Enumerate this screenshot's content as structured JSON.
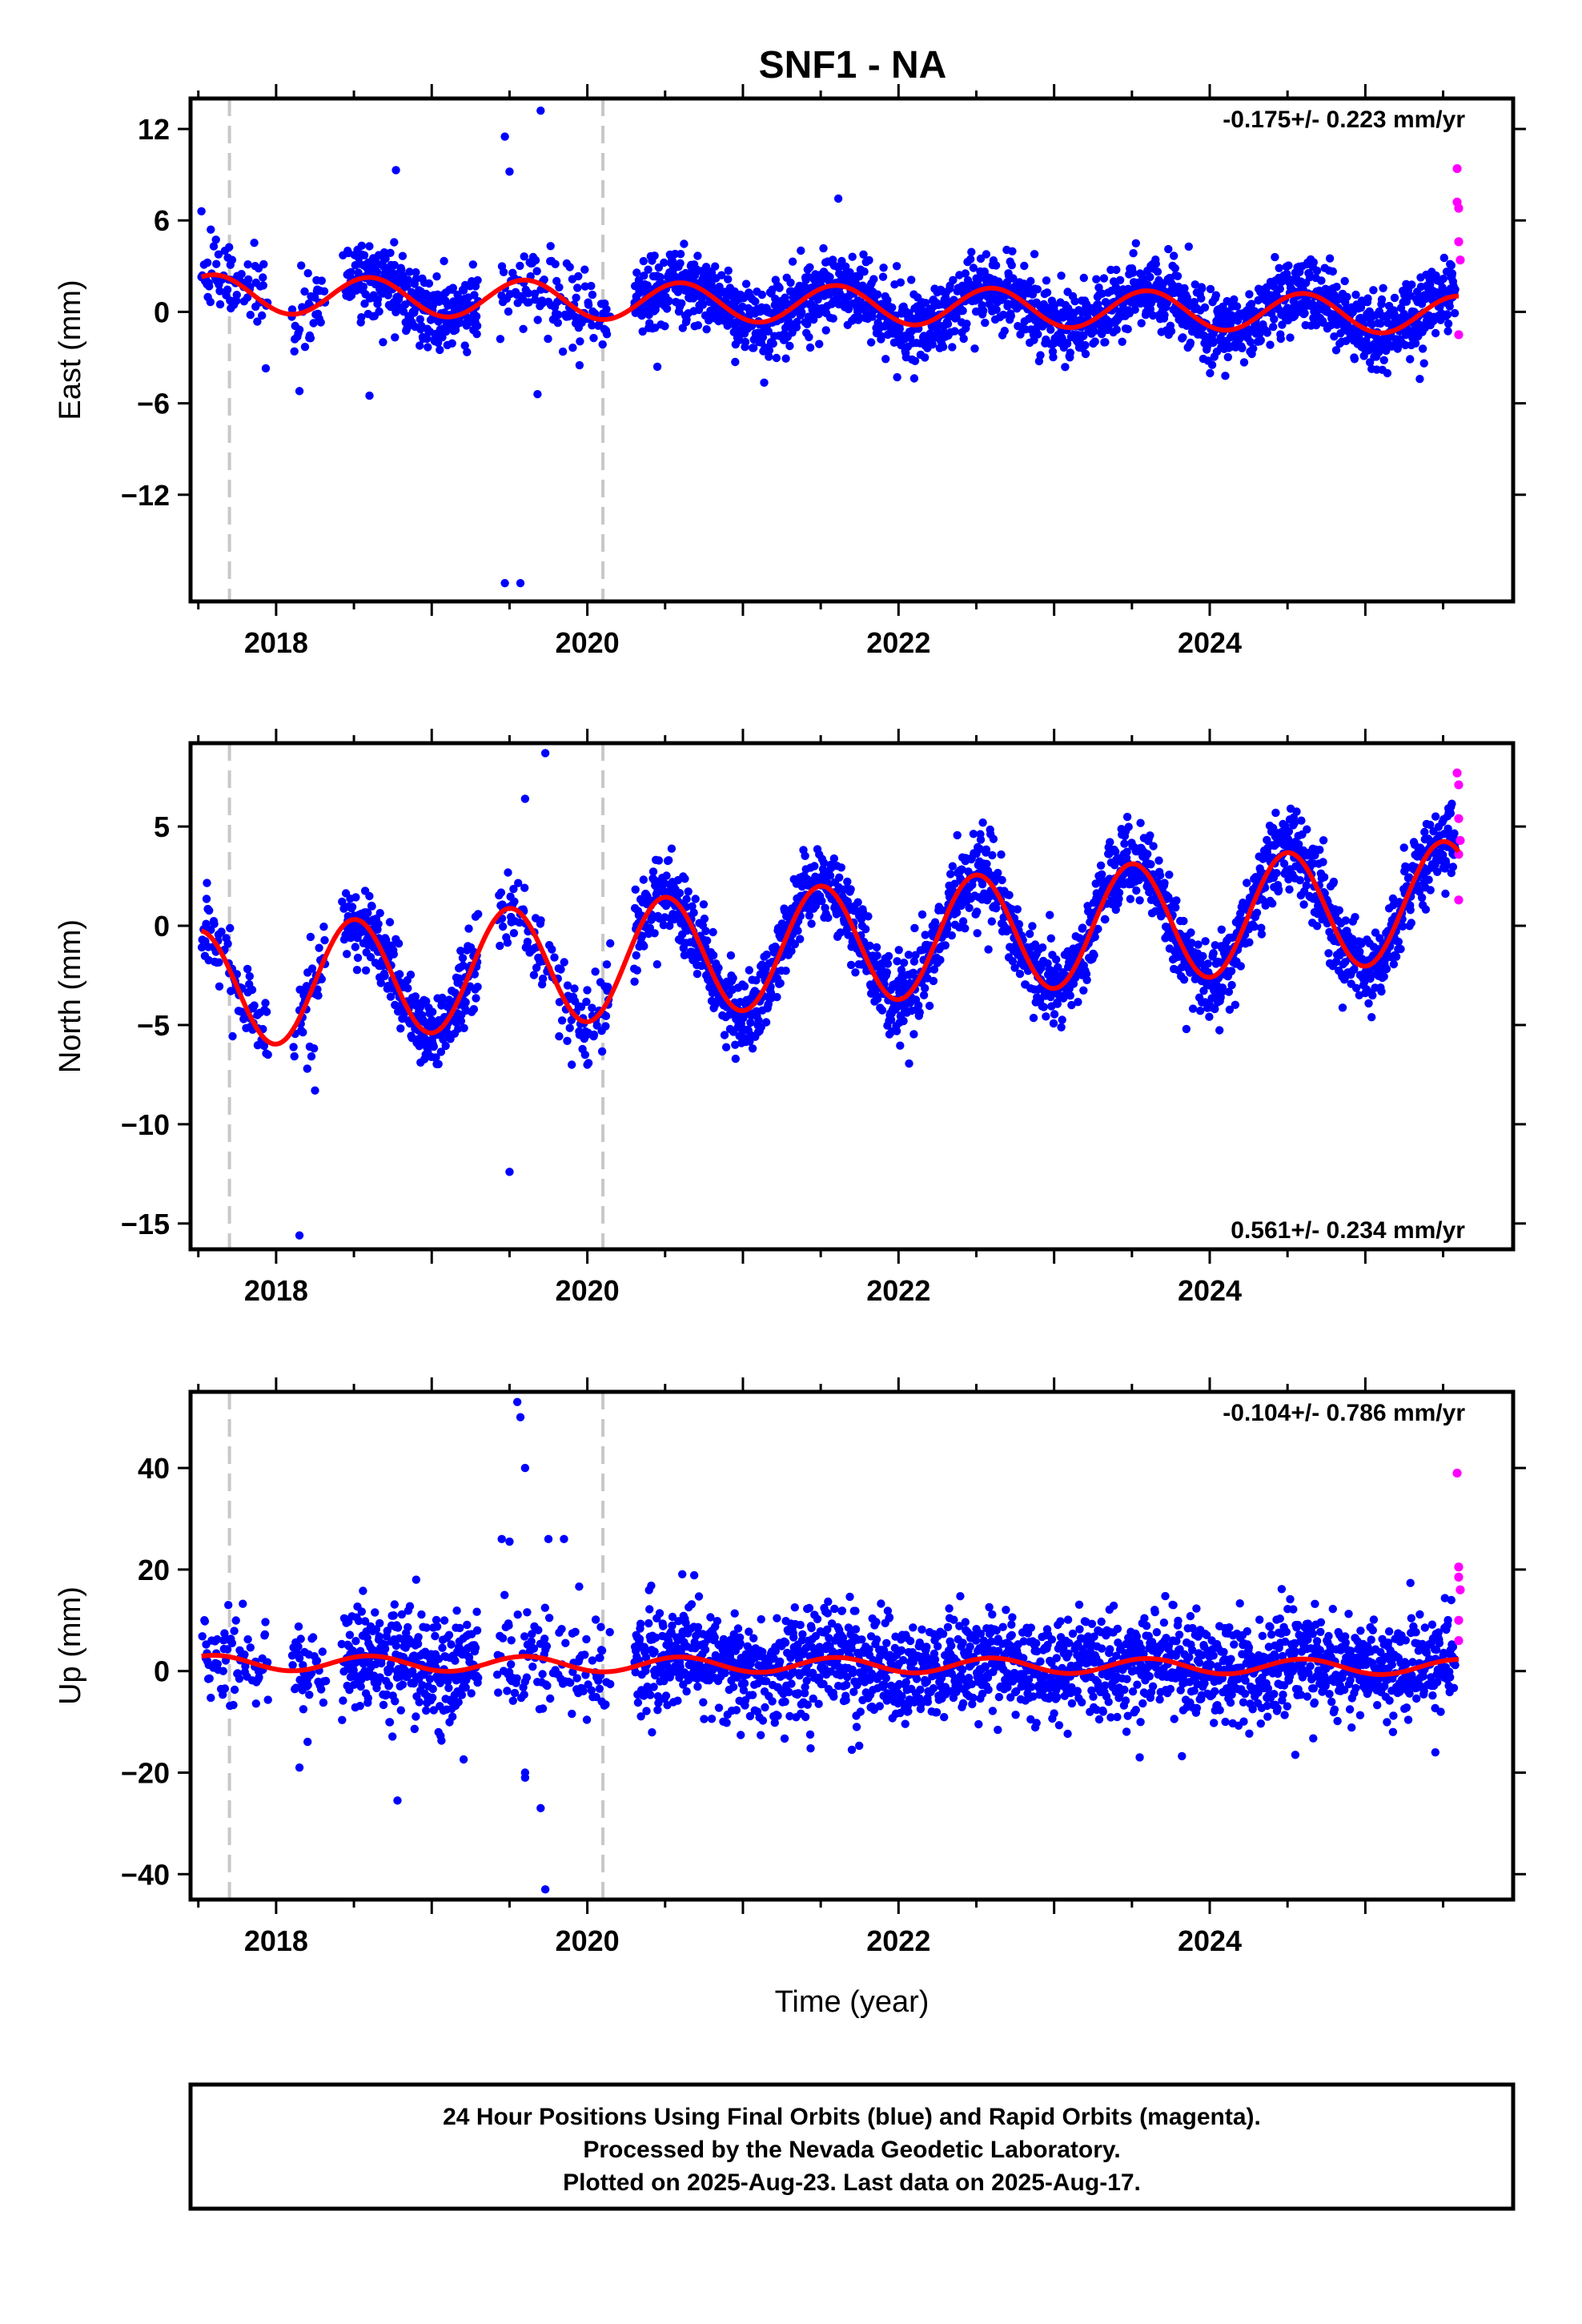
{
  "title": "SNF1 - NA",
  "colors": {
    "final_orbits": "#0000ff",
    "rapid_orbits": "#ff00ff",
    "model_fit": "#ff0000",
    "event_lines": "#c8c8c8"
  },
  "chart_data": [
    {
      "type": "scatter",
      "component": "east",
      "ylabel": "East (mm)",
      "ylim": [
        -19,
        14
      ],
      "yticks": [
        12,
        6,
        0,
        -6,
        -12
      ],
      "ytick_labels": [
        "12",
        "6",
        "0",
        "−6",
        "−12"
      ],
      "xlim": [
        2017.45,
        2025.95
      ],
      "xticks": [
        2018,
        2020,
        2022,
        2024
      ],
      "xtick_labels": [
        "2018",
        "2020",
        "2022",
        "2024"
      ],
      "event_lines_x": [
        2017.7,
        2020.1
      ],
      "rate_text": "-0.175+/- 0.223 mm/yr",
      "rate_position": "top-right",
      "model": {
        "base": 0.5,
        "trend": -0.175,
        "annual_amp": 1.25,
        "phase_year": 2018.6,
        "noise_sd": 1.2
      },
      "outliers": [
        {
          "x": 2017.52,
          "y": 6.6
        },
        {
          "x": 2017.58,
          "y": 5.4
        },
        {
          "x": 2018.15,
          "y": -5.2
        },
        {
          "x": 2018.6,
          "y": -5.5
        },
        {
          "x": 2018.77,
          "y": 9.3
        },
        {
          "x": 2019.47,
          "y": 11.5
        },
        {
          "x": 2019.5,
          "y": 9.2
        },
        {
          "x": 2019.7,
          "y": 13.2
        },
        {
          "x": 2019.68,
          "y": -5.4
        },
        {
          "x": 2019.47,
          "y": -17.8
        },
        {
          "x": 2019.57,
          "y": -17.8
        },
        {
          "x": 2019.95,
          "y": -3.5
        },
        {
          "x": 2020.45,
          "y": -3.6
        },
        {
          "x": 2024.1,
          "y": -4.2
        },
        {
          "x": 2025.35,
          "y": -4.4
        }
      ],
      "rapid_points": [
        {
          "x": 2025.59,
          "y": 9.4
        },
        {
          "x": 2025.59,
          "y": 7.2
        },
        {
          "x": 2025.6,
          "y": 6.8
        },
        {
          "x": 2025.6,
          "y": 4.6
        },
        {
          "x": 2025.61,
          "y": 3.4
        },
        {
          "x": 2025.6,
          "y": -1.5
        }
      ]
    },
    {
      "type": "scatter",
      "component": "north",
      "ylabel": "North (mm)",
      "ylim": [
        -16.3,
        9.2
      ],
      "yticks": [
        5,
        0,
        -5,
        -10,
        -15
      ],
      "ytick_labels": [
        "5",
        "0",
        "−5",
        "−10",
        "−15"
      ],
      "xlim": [
        2017.45,
        2025.95
      ],
      "xticks": [
        2018,
        2020,
        2022,
        2024
      ],
      "xtick_labels": [
        "2018",
        "2020",
        "2022",
        "2024"
      ],
      "event_lines_x": [
        2017.7,
        2020.1
      ],
      "rate_text": "0.561+/- 0.234 mm/yr",
      "rate_position": "bottom-right",
      "model": {
        "base": -1.0,
        "trend": 0.561,
        "annual_amp": 3.0,
        "phase_year": 2018.5,
        "noise_sd": 1.0
      },
      "outliers": [
        {
          "x": 2018.15,
          "y": -15.6
        },
        {
          "x": 2019.5,
          "y": -12.4
        },
        {
          "x": 2019.73,
          "y": 8.7
        },
        {
          "x": 2019.6,
          "y": 6.4
        },
        {
          "x": 2018.25,
          "y": -8.3
        },
        {
          "x": 2018.2,
          "y": -7.2
        },
        {
          "x": 2019.9,
          "y": -7.0
        },
        {
          "x": 2020.0,
          "y": -7.0
        },
        {
          "x": 2023.85,
          "y": -5.2
        },
        {
          "x": 2020.95,
          "y": -6.0
        }
      ],
      "rapid_points": [
        {
          "x": 2025.59,
          "y": 7.7
        },
        {
          "x": 2025.6,
          "y": 7.1
        },
        {
          "x": 2025.6,
          "y": 5.4
        },
        {
          "x": 2025.61,
          "y": 4.3
        },
        {
          "x": 2025.6,
          "y": 3.6
        },
        {
          "x": 2025.6,
          "y": 1.3
        }
      ]
    },
    {
      "type": "scatter",
      "component": "up",
      "ylabel": "Up (mm)",
      "ylim": [
        -45,
        55
      ],
      "yticks": [
        40,
        20,
        0,
        -20,
        -40
      ],
      "ytick_labels": [
        "40",
        "20",
        "0",
        "−20",
        "−40"
      ],
      "xlim": [
        2017.45,
        2025.95
      ],
      "xticks": [
        2018,
        2020,
        2022,
        2024
      ],
      "xtick_labels": [
        "2018",
        "2020",
        "2022",
        "2024"
      ],
      "xlabel": "Time (year)",
      "event_lines_x": [
        2017.7,
        2020.1
      ],
      "rate_text": "-0.104+/- 0.786 mm/yr",
      "rate_position": "top-right",
      "model": {
        "base": 1.2,
        "trend": -0.104,
        "annual_amp": 1.5,
        "phase_year": 2018.6,
        "noise_sd": 5.0
      },
      "outliers": [
        {
          "x": 2019.55,
          "y": 53.0
        },
        {
          "x": 2019.57,
          "y": 50.0
        },
        {
          "x": 2019.6,
          "y": 40.0
        },
        {
          "x": 2019.45,
          "y": 26.0
        },
        {
          "x": 2019.5,
          "y": 25.5
        },
        {
          "x": 2019.75,
          "y": 26.0
        },
        {
          "x": 2019.85,
          "y": 26.0
        },
        {
          "x": 2018.15,
          "y": -19.0
        },
        {
          "x": 2018.78,
          "y": -25.5
        },
        {
          "x": 2019.6,
          "y": -20.0
        },
        {
          "x": 2019.6,
          "y": -21.0
        },
        {
          "x": 2019.7,
          "y": -27.0
        },
        {
          "x": 2019.73,
          "y": -43.0
        },
        {
          "x": 2018.9,
          "y": 18.0
        },
        {
          "x": 2021.7,
          "y": -15.5
        },
        {
          "x": 2023.55,
          "y": -17.0
        },
        {
          "x": 2024.55,
          "y": -16.5
        },
        {
          "x": 2025.45,
          "y": -16.0
        }
      ],
      "rapid_points": [
        {
          "x": 2025.59,
          "y": 39.0
        },
        {
          "x": 2025.6,
          "y": 20.5
        },
        {
          "x": 2025.6,
          "y": 18.5
        },
        {
          "x": 2025.61,
          "y": 16.0
        },
        {
          "x": 2025.6,
          "y": 10.0
        },
        {
          "x": 2025.6,
          "y": 6.0
        }
      ]
    }
  ],
  "footer": {
    "line1": "24 Hour Positions Using Final Orbits (blue) and Rapid Orbits (magenta).",
    "line2": "Processed by the Nevada Geodetic Laboratory.",
    "line3": "Plotted on 2025-Aug-23. Last data on 2025-Aug-17."
  }
}
